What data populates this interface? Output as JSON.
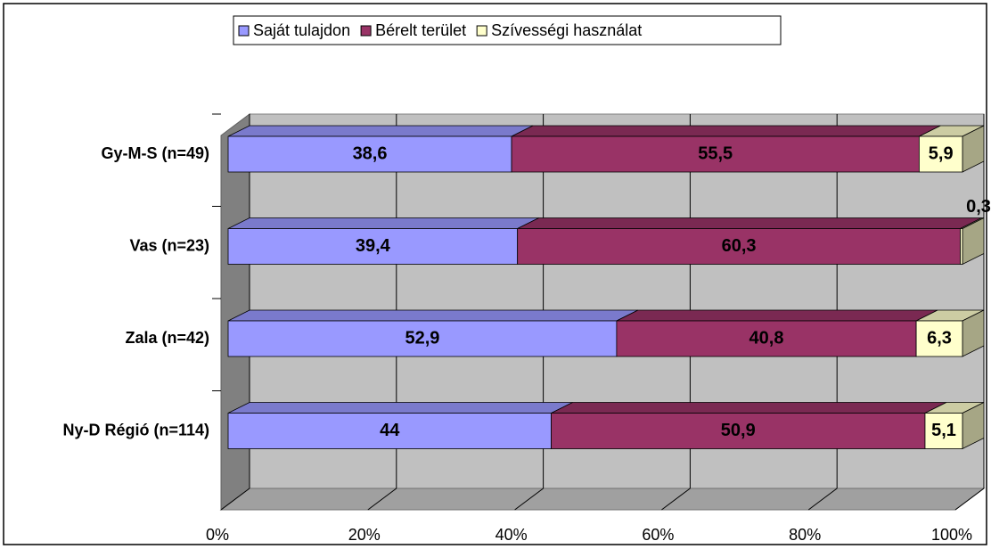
{
  "chart_data": {
    "type": "stacked-bar-horizontal",
    "categories": [
      "Gy-M-S (n=49)",
      "Vas (n=23)",
      "Zala (n=42)",
      "Ny-D Régió (n=114)"
    ],
    "series": [
      {
        "name": "Saját tulajdon",
        "color": "#9999ff",
        "values": [
          38.6,
          39.4,
          52.9,
          44
        ],
        "value_labels": [
          "38,6",
          "39,4",
          "52,9",
          "44"
        ]
      },
      {
        "name": "Bérelt terület",
        "color": "#993366",
        "values": [
          55.5,
          60.3,
          40.8,
          50.9
        ],
        "value_labels": [
          "55,5",
          "60,3",
          "40,8",
          "50,9"
        ]
      },
      {
        "name": "Szívességi használat",
        "color": "#ffffcc",
        "values": [
          5.9,
          0.3,
          6.3,
          5.1
        ],
        "value_labels": [
          "5,9",
          "0,3",
          "6,3",
          "5,1"
        ]
      }
    ],
    "xlim": [
      0,
      100
    ],
    "xticks": [
      {
        "value": 0,
        "label": "0%"
      },
      {
        "value": 20,
        "label": "20%"
      },
      {
        "value": 40,
        "label": "40%"
      },
      {
        "value": 60,
        "label": "60%"
      },
      {
        "value": 80,
        "label": "80%"
      },
      {
        "value": 100,
        "label": "100%"
      }
    ],
    "grid": true,
    "legend": "top"
  }
}
